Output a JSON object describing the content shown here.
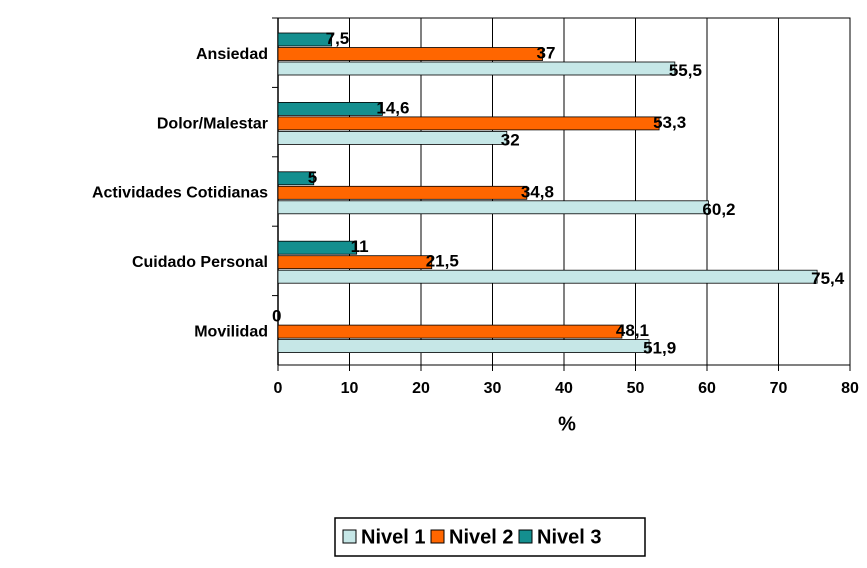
{
  "chart_data": {
    "type": "bar",
    "orientation": "horizontal",
    "categories": [
      "Ansiedad",
      "Dolor/Malestar",
      "Actividades Cotidianas",
      "Cuidado Personal",
      "Movilidad"
    ],
    "series": [
      {
        "name": "Nivel 1",
        "color": "#c6e7e7",
        "values": [
          55.5,
          32,
          60.2,
          75.4,
          51.9
        ],
        "value_labels": [
          "55,5",
          "32",
          "60,2",
          "75,4",
          "51,9"
        ]
      },
      {
        "name": "Nivel 2",
        "color": "#ff6600",
        "values": [
          37,
          53.3,
          34.8,
          21.5,
          48.1
        ],
        "value_labels": [
          "37",
          "53,3",
          "34,8",
          "21,5",
          "48,1"
        ]
      },
      {
        "name": "Nivel 3",
        "color": "#148f8f",
        "values": [
          7.5,
          14.6,
          5,
          11,
          0
        ],
        "value_labels": [
          "7,5",
          "14,6",
          "5",
          "11",
          "0"
        ]
      }
    ],
    "xlabel": "%",
    "xlim": [
      0,
      80
    ],
    "xticks": [
      0,
      10,
      20,
      30,
      40,
      50,
      60,
      70,
      80
    ],
    "grid": true,
    "legend": "bottom"
  }
}
